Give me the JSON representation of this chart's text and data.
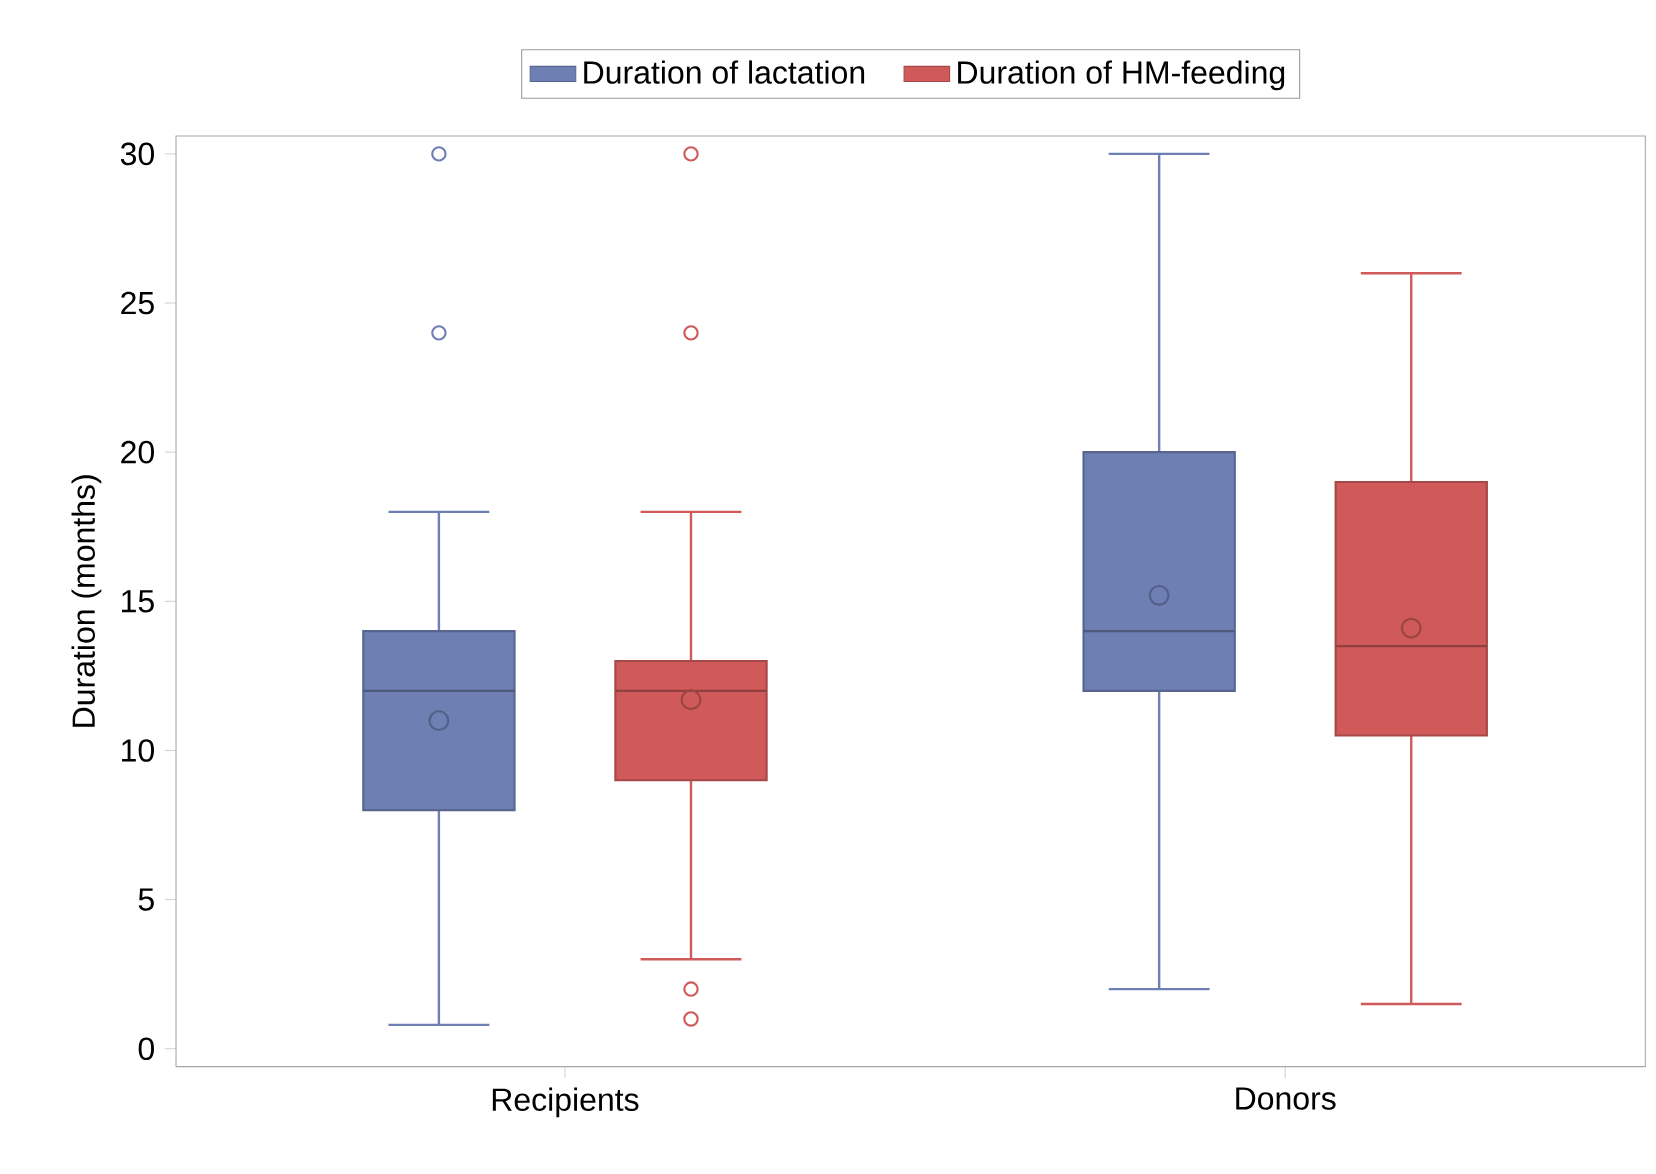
{
  "chart_data": {
    "type": "box",
    "ylabel": "Duration (months)",
    "categories": [
      "Recipients",
      "Donors"
    ],
    "ylim": [
      -0.6,
      30.6
    ],
    "yticks": [
      0,
      5,
      10,
      15,
      20,
      25,
      30
    ],
    "legend": "top",
    "series": [
      {
        "name": "Duration of lactation",
        "color": "#6e7fb3",
        "boxes": [
          {
            "low": 0.8,
            "q1": 8,
            "median": 12,
            "q3": 14,
            "high": 18,
            "mean": 11,
            "outliers": [
              30,
              24
            ]
          },
          {
            "low": 2,
            "q1": 12,
            "median": 14,
            "q3": 20,
            "high": 30,
            "mean": 15.2
          }
        ]
      },
      {
        "name": "Duration of HM-feeding",
        "color": "#d05a5a",
        "boxes": [
          {
            "low": 3,
            "q1": 9,
            "median": 12,
            "q3": 13,
            "high": 18,
            "mean": 11.7,
            "outliers": [
              30,
              24,
              2,
              1
            ]
          },
          {
            "low": 1.5,
            "q1": 10.5,
            "median": 13.5,
            "q3": 19,
            "high": 26,
            "mean": 14.1
          }
        ]
      }
    ]
  }
}
